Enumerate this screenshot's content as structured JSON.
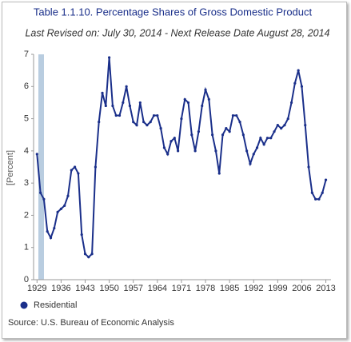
{
  "chart_data": {
    "type": "line",
    "title": "Table 1.1.10. Percentage Shares of Gross Domestic Product",
    "subtitle": "Last Revised on: July 30, 2014 - Next Release Date August 28, 2014",
    "y_label": "[Percent]",
    "source": "Source: U.S. Bureau of Economic Analysis",
    "x": [
      1929,
      1930,
      1931,
      1932,
      1933,
      1934,
      1935,
      1936,
      1937,
      1938,
      1939,
      1940,
      1941,
      1942,
      1943,
      1944,
      1945,
      1946,
      1947,
      1948,
      1949,
      1950,
      1951,
      1952,
      1953,
      1954,
      1955,
      1956,
      1957,
      1958,
      1959,
      1960,
      1961,
      1962,
      1963,
      1964,
      1965,
      1966,
      1967,
      1968,
      1969,
      1970,
      1971,
      1972,
      1973,
      1974,
      1975,
      1976,
      1977,
      1978,
      1979,
      1980,
      1981,
      1982,
      1983,
      1984,
      1985,
      1986,
      1987,
      1988,
      1989,
      1990,
      1991,
      1992,
      1993,
      1994,
      1995,
      1996,
      1997,
      1998,
      1999,
      2000,
      2001,
      2002,
      2003,
      2004,
      2005,
      2006,
      2007,
      2008,
      2009,
      2010,
      2011,
      2012,
      2013
    ],
    "series": [
      {
        "name": "Residential",
        "color": "#1a2f8a",
        "values": [
          3.9,
          2.7,
          2.5,
          1.5,
          1.3,
          1.6,
          2.1,
          2.2,
          2.3,
          2.6,
          3.4,
          3.5,
          3.3,
          1.4,
          0.8,
          0.7,
          0.8,
          3.5,
          4.9,
          5.8,
          5.4,
          6.9,
          5.4,
          5.1,
          5.1,
          5.5,
          6.0,
          5.4,
          4.9,
          4.8,
          5.5,
          4.9,
          4.8,
          4.9,
          5.1,
          5.1,
          4.7,
          4.1,
          3.9,
          4.3,
          4.4,
          4.0,
          5.0,
          5.6,
          5.5,
          4.5,
          4.0,
          4.6,
          5.4,
          5.9,
          5.6,
          4.5,
          4.0,
          3.3,
          4.5,
          4.7,
          4.6,
          5.1,
          5.1,
          4.9,
          4.5,
          4.0,
          3.6,
          3.9,
          4.1,
          4.4,
          4.2,
          4.4,
          4.4,
          4.6,
          4.8,
          4.7,
          4.8,
          5.0,
          5.5,
          6.1,
          6.5,
          6.0,
          4.8,
          3.5,
          2.7,
          2.5,
          2.5,
          2.7,
          3.1
        ]
      }
    ],
    "xlim": [
      1928,
      2014.5
    ],
    "xticks": [
      1929,
      1936,
      1943,
      1950,
      1957,
      1964,
      1971,
      1978,
      1985,
      1992,
      1999,
      2006,
      2013
    ],
    "ylim": [
      0,
      7
    ],
    "yticks": [
      0,
      1,
      2,
      3,
      4,
      5,
      6,
      7
    ]
  }
}
